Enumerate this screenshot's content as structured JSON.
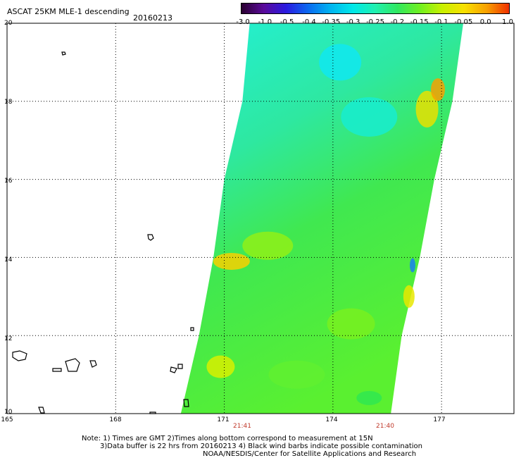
{
  "header": {
    "title": "ASCAT 25KM MLE-1 descending",
    "date": "20160213"
  },
  "colorbar": {
    "labels": [
      "-3.0",
      "-1.0",
      "-0.5",
      "-0.4",
      "-0.35",
      "-0.3",
      "-0.25",
      "-0.2",
      "-0.15",
      "-0.1",
      "-0.05",
      "0.0",
      "1.0"
    ],
    "colors": [
      "#2a0030",
      "#5a0a9a",
      "#2a1ae0",
      "#0a6af0",
      "#00b4f0",
      "#00e8e8",
      "#20f0b0",
      "#30e860",
      "#70f020",
      "#c8f000",
      "#f8e000",
      "#f8a000",
      "#f03000"
    ]
  },
  "axes": {
    "lat_labels": [
      "20",
      "18",
      "16",
      "14",
      "12",
      "10"
    ],
    "lon_labels": [
      "165",
      "168",
      "171",
      "174",
      "177"
    ],
    "time_labels": [
      "21:41",
      "21:40"
    ]
  },
  "map_data": {
    "lat_range": [
      10,
      20
    ],
    "lon_range": [
      165,
      179
    ],
    "swath_edges": [
      {
        "lat": 20,
        "lon_min": 171.7,
        "lon_max": 177.6
      },
      {
        "lat": 18,
        "lon_min": 171.5,
        "lon_max": 177.3
      },
      {
        "lat": 16,
        "lon_min": 171.0,
        "lon_max": 176.8
      },
      {
        "lat": 14,
        "lon_min": 170.7,
        "lon_max": 176.4
      },
      {
        "lat": 12,
        "lon_min": 170.3,
        "lon_max": 175.9
      },
      {
        "lat": 10,
        "lon_min": 169.8,
        "lon_max": 175.6
      }
    ],
    "gridlines": true
  },
  "notes": {
    "line1": "Note: 1) Times are GMT 2)Times along bottom correspond to measurement at 15N",
    "line2": "3)Data buffer is 22 hrs from 20160213 4) Black wind barbs indicate possible contamination",
    "line3": "NOAA/NESDIS/Center for Satellite Applications and Research"
  }
}
